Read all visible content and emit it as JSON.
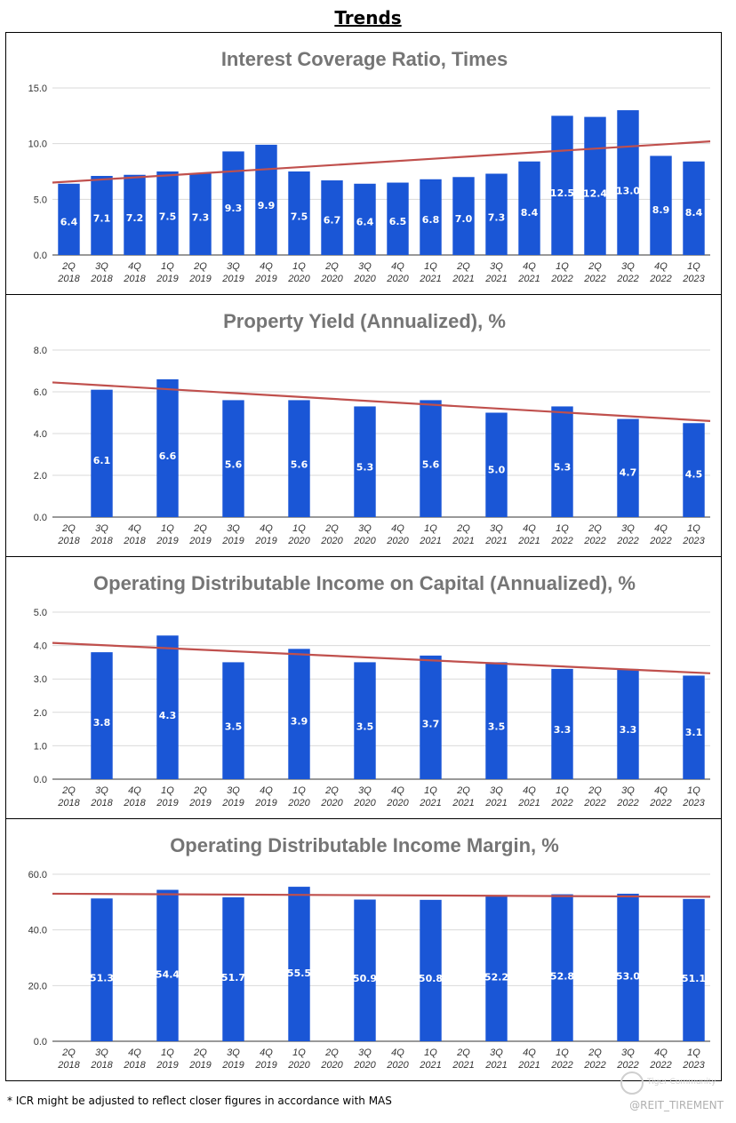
{
  "header": {
    "title": "Trends"
  },
  "footnote": "* ICR might be adjusted to reflect closer figures in accordance with MAS",
  "watermark": {
    "handle": "@REIT_TIREMENT",
    "logo_text": "Tiger Community",
    "logo_icon": "tiger-community-logo-icon"
  },
  "colors": {
    "bar": "#1a56d6",
    "trend": "#c0504d",
    "grid": "#d9d9d9",
    "title": "#757575"
  },
  "chart_data": [
    {
      "type": "bar",
      "title": "Interest Coverage Ratio, Times",
      "categories": [
        "2Q 2018",
        "3Q 2018",
        "4Q 2018",
        "1Q 2019",
        "2Q 2019",
        "3Q 2019",
        "4Q 2019",
        "1Q 2020",
        "2Q 2020",
        "3Q 2020",
        "4Q 2020",
        "1Q 2021",
        "2Q 2021",
        "3Q 2021",
        "4Q 2021",
        "1Q 2022",
        "2Q 2022",
        "3Q 2022",
        "4Q 2022",
        "1Q 2023"
      ],
      "values": [
        6.4,
        7.1,
        7.2,
        7.5,
        7.3,
        9.3,
        9.9,
        7.5,
        6.7,
        6.4,
        6.5,
        6.8,
        7.0,
        7.3,
        8.4,
        12.5,
        12.4,
        13.0,
        8.9,
        8.4
      ],
      "ylim": [
        0,
        15
      ],
      "yticks": [
        "0.0",
        "5.0",
        "10.0",
        "15.0"
      ],
      "trendline": [
        6.5,
        10.2
      ],
      "grid": true
    },
    {
      "type": "bar",
      "title": "Property Yield (Annualized), %",
      "categories": [
        "2Q 2018",
        "3Q 2018",
        "4Q 2018",
        "1Q 2019",
        "2Q 2019",
        "3Q 2019",
        "4Q 2019",
        "1Q 2020",
        "2Q 2020",
        "3Q 2020",
        "4Q 2020",
        "1Q 2021",
        "2Q 2021",
        "3Q 2021",
        "4Q 2021",
        "1Q 2022",
        "2Q 2022",
        "3Q 2022",
        "4Q 2022",
        "1Q 2023"
      ],
      "values": [
        null,
        6.1,
        null,
        6.6,
        null,
        5.6,
        null,
        5.6,
        null,
        5.3,
        null,
        5.6,
        null,
        5.0,
        null,
        5.3,
        null,
        4.7,
        null,
        4.5
      ],
      "ylim": [
        0,
        8
      ],
      "yticks": [
        "0.0",
        "2.0",
        "4.0",
        "6.0",
        "8.0"
      ],
      "trendline": [
        6.45,
        4.6
      ],
      "grid": true
    },
    {
      "type": "bar",
      "title": "Operating Distributable Income on Capital (Annualized), %",
      "categories": [
        "2Q 2018",
        "3Q 2018",
        "4Q 2018",
        "1Q 2019",
        "2Q 2019",
        "3Q 2019",
        "4Q 2019",
        "1Q 2020",
        "2Q 2020",
        "3Q 2020",
        "4Q 2020",
        "1Q 2021",
        "2Q 2021",
        "3Q 2021",
        "4Q 2021",
        "1Q 2022",
        "2Q 2022",
        "3Q 2022",
        "4Q 2022",
        "1Q 2023"
      ],
      "values": [
        null,
        3.8,
        null,
        4.3,
        null,
        3.5,
        null,
        3.9,
        null,
        3.5,
        null,
        3.7,
        null,
        3.5,
        null,
        3.3,
        null,
        3.3,
        null,
        3.1
      ],
      "ylim": [
        0,
        5
      ],
      "yticks": [
        "0.0",
        "1.0",
        "2.0",
        "3.0",
        "4.0",
        "5.0"
      ],
      "trendline": [
        4.08,
        3.17
      ],
      "grid": true
    },
    {
      "type": "bar",
      "title": "Operating Distributable Income Margin, %",
      "categories": [
        "2Q 2018",
        "3Q 2018",
        "4Q 2018",
        "1Q 2019",
        "2Q 2019",
        "3Q 2019",
        "4Q 2019",
        "1Q 2020",
        "2Q 2020",
        "3Q 2020",
        "4Q 2020",
        "1Q 2021",
        "2Q 2021",
        "3Q 2021",
        "4Q 2021",
        "1Q 2022",
        "2Q 2022",
        "3Q 2022",
        "4Q 2022",
        "1Q 2023"
      ],
      "values": [
        null,
        51.3,
        null,
        54.4,
        null,
        51.7,
        null,
        55.5,
        null,
        50.9,
        null,
        50.8,
        null,
        52.2,
        null,
        52.8,
        null,
        53.0,
        null,
        51.1
      ],
      "ylim": [
        0,
        60
      ],
      "yticks": [
        "0.0",
        "20.0",
        "40.0",
        "60.0"
      ],
      "trendline": [
        53.0,
        51.9
      ],
      "grid": true
    }
  ]
}
